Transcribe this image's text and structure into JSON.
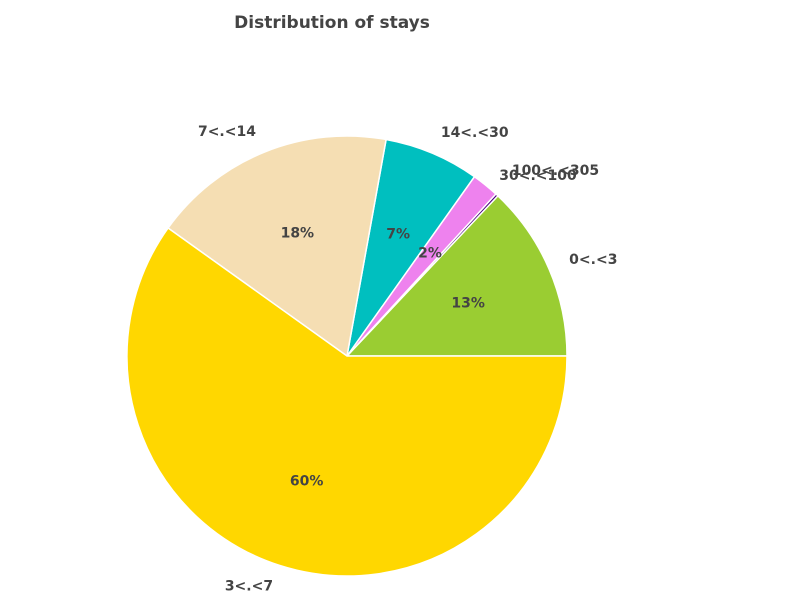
{
  "chart_data": {
    "type": "pie",
    "title": "Distribution of stays",
    "slices": [
      {
        "label": "0<.<3",
        "value": 13,
        "pct_label": "13%",
        "color": "#9acd32"
      },
      {
        "label": "100<.<305",
        "value": 0.2,
        "pct_label": "",
        "color": "#4b0082"
      },
      {
        "label": "30<.<100",
        "value": 2,
        "pct_label": "2%",
        "color": "#ee82ee"
      },
      {
        "label": "14<.<30",
        "value": 7,
        "pct_label": "7%",
        "color": "#00bfbf"
      },
      {
        "label": "7<.<14",
        "value": 18,
        "pct_label": "18%",
        "color": "#f5deb3"
      },
      {
        "label": "3<.<7",
        "value": 60,
        "pct_label": "60%",
        "color": "#ffd700"
      }
    ],
    "legend": "none"
  }
}
